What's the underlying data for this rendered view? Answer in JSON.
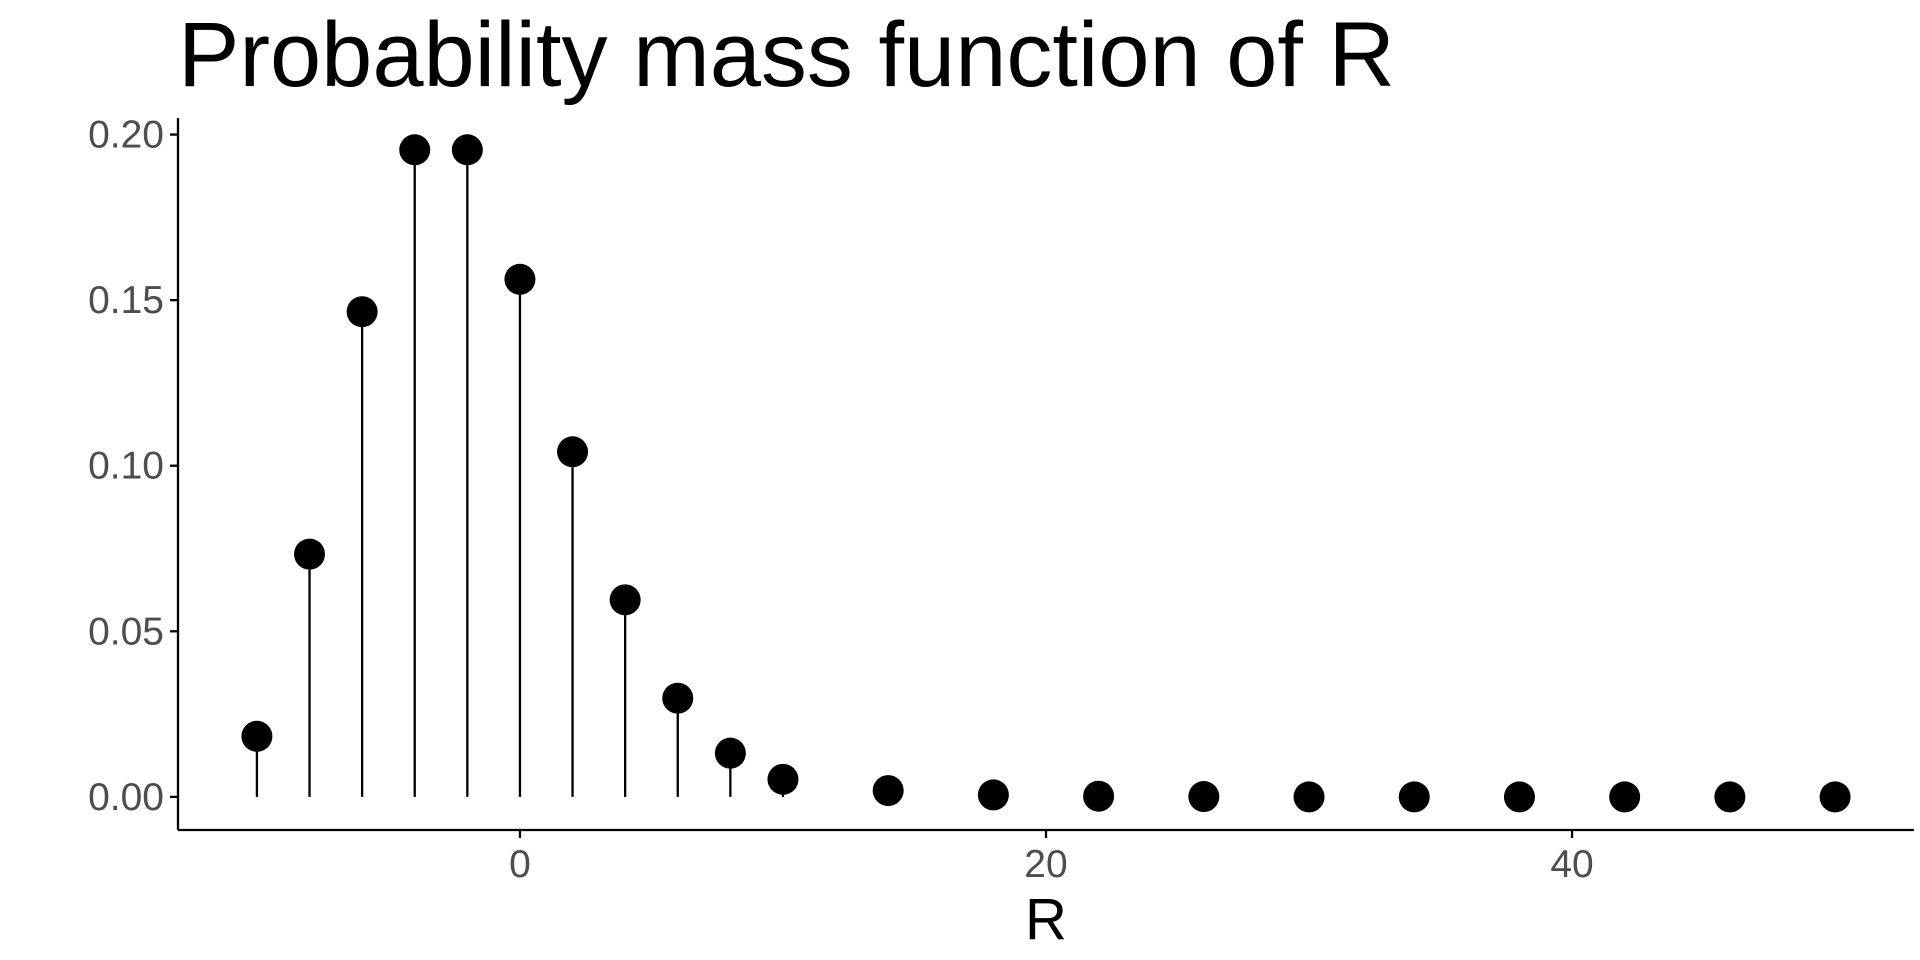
{
  "chart_data": {
    "type": "lollipop",
    "title": "Probability mass function of R",
    "xlabel": "R",
    "ylabel": "",
    "xlim": [
      -13,
      53
    ],
    "ylim": [
      -0.01,
      0.205
    ],
    "x_ticks": [
      0,
      20,
      40
    ],
    "x_tick_labels": [
      "0",
      "20",
      "40"
    ],
    "y_ticks": [
      0.0,
      0.05,
      0.1,
      0.15,
      0.2
    ],
    "y_tick_labels": [
      "0.00",
      "0.05",
      "0.10",
      "0.15",
      "0.20"
    ],
    "grid": false,
    "legend": "none",
    "colors": {
      "marks": "#000000",
      "axis": "#000000",
      "tick_text": "#4d4d4d"
    },
    "x": [
      -10,
      -8,
      -6,
      -4,
      -2,
      0,
      2,
      4,
      6,
      8,
      10,
      14,
      18,
      22,
      26,
      30,
      34,
      38,
      42,
      46,
      50
    ],
    "y": [
      0.0183,
      0.0733,
      0.1465,
      0.1954,
      0.1954,
      0.1563,
      0.1042,
      0.0595,
      0.0298,
      0.0132,
      0.0053,
      0.0019,
      0.0006,
      0.0002,
      0.0001,
      0.0,
      0.0,
      0.0,
      0.0,
      0.0,
      0.0
    ]
  }
}
